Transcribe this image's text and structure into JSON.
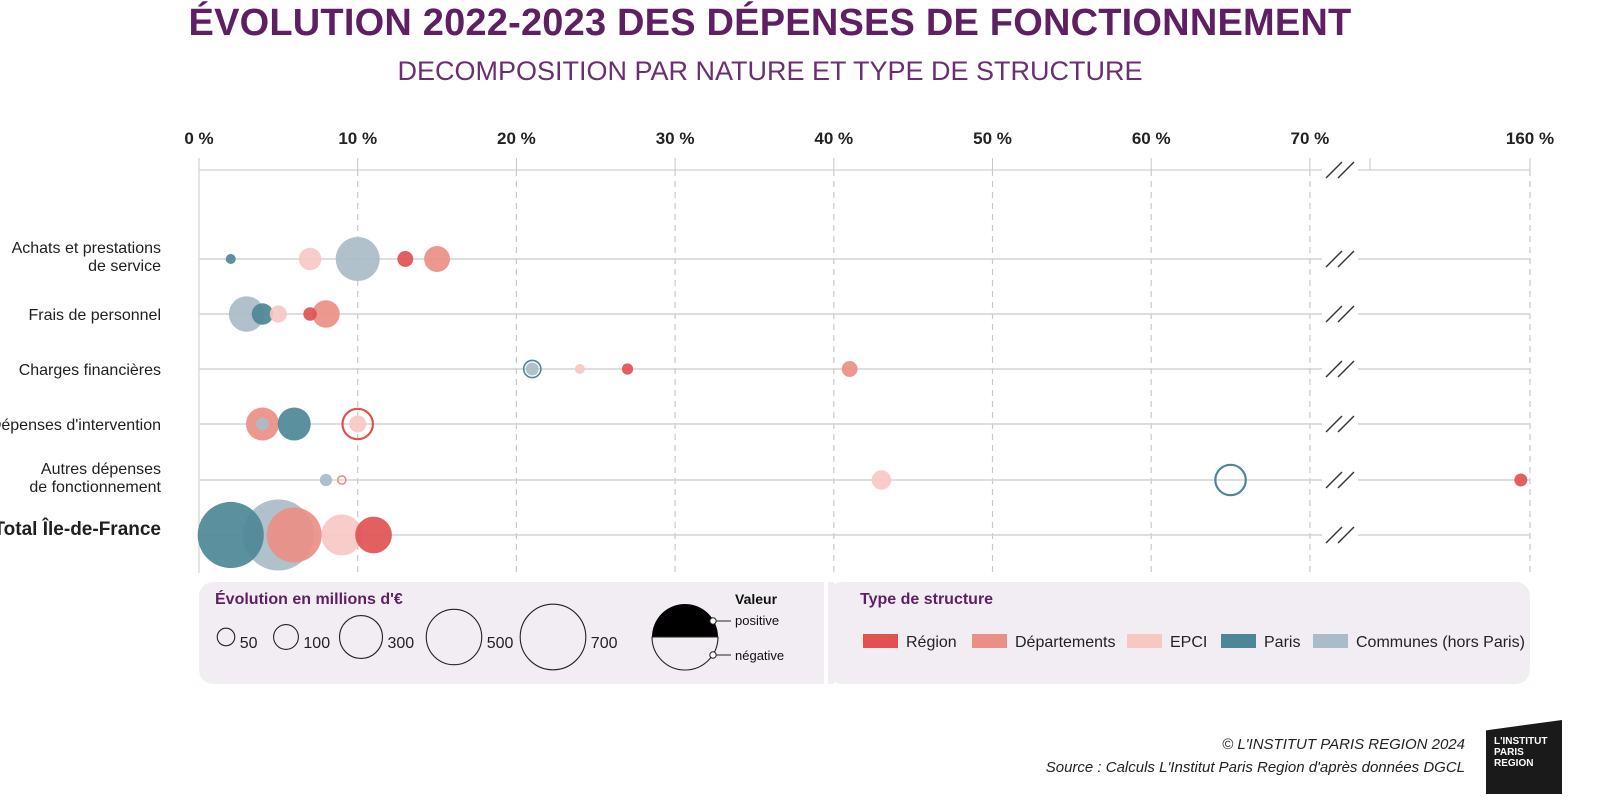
{
  "title": "ÉVOLUTION 2022-2023 DES DÉPENSES DE FONCTIONNEMENT",
  "subtitle": "DECOMPOSITION PAR NATURE ET TYPE DE STRUCTURE",
  "footer": {
    "copyright": "© L'INSTITUT PARIS REGION 2024",
    "source": "Source : Calculs L'Institut Paris Region d'après données DGCL"
  },
  "logo": {
    "line1": "L'INSTITUT",
    "line2": "PARIS",
    "line3": "REGION"
  },
  "colors": {
    "Région": "#e05252",
    "Départements": "#ea8f85",
    "EPCI": "#f6c8c4",
    "Paris": "#4d8797",
    "Communes (hors Paris)": "#a9bcc7",
    "title": "#5e1f63",
    "legend_bg": "#f1edf2"
  },
  "chart_data": {
    "type": "scatter",
    "x_ticks": [
      "0 %",
      "10 %",
      "20 %",
      "30 %",
      "40 %",
      "50 %",
      "60 %",
      "70 %",
      "160 %"
    ],
    "x_axis_break": [
      73,
      158
    ],
    "xlim": [
      0,
      160
    ],
    "categories": [
      "Achats et prestations\nde service",
      "Frais de personnel",
      "Charges financières",
      "Dépenses d'intervention",
      "Autres dépenses\nde fonctionnement",
      "Total Île-de-France"
    ],
    "series": [
      {
        "name": "Région",
        "points": [
          {
            "category": 0,
            "x": 13,
            "size": 30,
            "sign": "positive"
          },
          {
            "category": 1,
            "x": 7,
            "size": 22,
            "sign": "positive"
          },
          {
            "category": 2,
            "x": 27,
            "size": 15,
            "sign": "positive"
          },
          {
            "category": 3,
            "x": 10,
            "size": 110,
            "sign": "negative"
          },
          {
            "category": 4,
            "x": 155,
            "size": 20,
            "sign": "positive"
          },
          {
            "category": 5,
            "x": 11,
            "size": 160,
            "sign": "positive"
          }
        ]
      },
      {
        "name": "Départements",
        "points": [
          {
            "category": 0,
            "x": 15,
            "size": 80,
            "sign": "positive"
          },
          {
            "category": 1,
            "x": 8,
            "size": 90,
            "sign": "positive"
          },
          {
            "category": 2,
            "x": 41,
            "size": 30,
            "sign": "positive"
          },
          {
            "category": 3,
            "x": 4,
            "size": 130,
            "sign": "positive"
          },
          {
            "category": 4,
            "x": 9,
            "size": 8,
            "sign": "negative"
          },
          {
            "category": 5,
            "x": 6,
            "size": 360,
            "sign": "positive"
          }
        ]
      },
      {
        "name": "EPCI",
        "points": [
          {
            "category": 0,
            "x": 7,
            "size": 60,
            "sign": "positive"
          },
          {
            "category": 1,
            "x": 5,
            "size": 35,
            "sign": "positive"
          },
          {
            "category": 2,
            "x": 24,
            "size": 12,
            "sign": "positive"
          },
          {
            "category": 3,
            "x": 10,
            "size": 35,
            "sign": "positive"
          },
          {
            "category": 4,
            "x": 43,
            "size": 45,
            "sign": "positive"
          },
          {
            "category": 5,
            "x": 9,
            "size": 200,
            "sign": "positive"
          }
        ]
      },
      {
        "name": "Paris",
        "points": [
          {
            "category": 0,
            "x": 2,
            "size": 12,
            "sign": "positive"
          },
          {
            "category": 1,
            "x": 4,
            "size": 55,
            "sign": "positive"
          },
          {
            "category": 2,
            "x": 21,
            "size": 35,
            "sign": "negative"
          },
          {
            "category": 3,
            "x": 6,
            "size": 130,
            "sign": "positive"
          },
          {
            "category": 4,
            "x": 65,
            "size": 110,
            "sign": "negative"
          },
          {
            "category": 5,
            "x": 2,
            "size": 520,
            "sign": "positive"
          }
        ]
      },
      {
        "name": "Communes (hors Paris)",
        "points": [
          {
            "category": 0,
            "x": 10,
            "size": 230,
            "sign": "positive"
          },
          {
            "category": 1,
            "x": 3,
            "size": 150,
            "sign": "positive"
          },
          {
            "category": 2,
            "x": 21,
            "size": 20,
            "sign": "positive"
          },
          {
            "category": 3,
            "x": 4,
            "size": 20,
            "sign": "positive"
          },
          {
            "category": 4,
            "x": 8,
            "size": 18,
            "sign": "positive"
          },
          {
            "category": 5,
            "x": 5,
            "size": 600,
            "sign": "positive"
          }
        ]
      }
    ],
    "legend": {
      "size_title": "Évolution en millions d'€",
      "size_values": [
        50,
        100,
        300,
        500,
        700
      ],
      "sign_title": "Valeur",
      "sign_positive": "positive",
      "sign_negative": "négative",
      "type_title": "Type de structure",
      "types": [
        "Région",
        "Départements",
        "EPCI",
        "Paris",
        "Communes (hors Paris)"
      ]
    }
  }
}
